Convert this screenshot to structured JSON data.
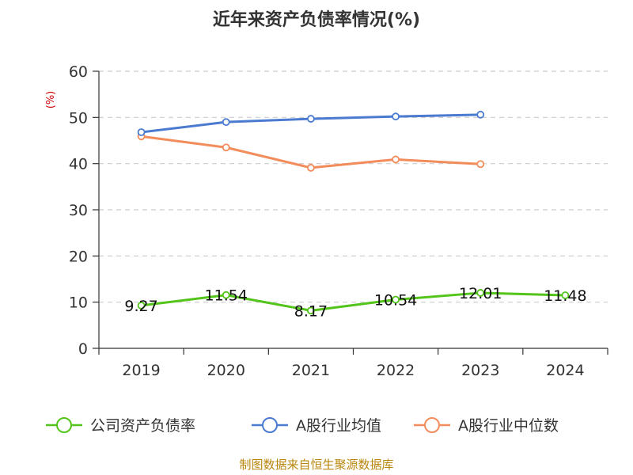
{
  "chart_data": {
    "type": "line",
    "title": "近年来资产负债率情况(%)",
    "ylabel": "(%)",
    "categories": [
      "2019",
      "2020",
      "2021",
      "2022",
      "2023",
      "2024"
    ],
    "ylim": [
      0,
      60
    ],
    "yticks": [
      0,
      10,
      20,
      30,
      40,
      50,
      60
    ],
    "grid": true,
    "legend_position": "bottom",
    "series": [
      {
        "name": "公司资产负债率",
        "color": "#52c41a",
        "values": [
          9.27,
          11.54,
          8.17,
          10.54,
          12.01,
          11.48
        ],
        "labels": [
          "9.27",
          "11.54",
          "8.17",
          "10.54",
          "12.01",
          "11.48"
        ]
      },
      {
        "name": "A股行业均值",
        "color": "#4a7bd0",
        "values": [
          46.8,
          49.0,
          49.7,
          50.2,
          50.6,
          null
        ]
      },
      {
        "name": "A股行业中位数",
        "color": "#f28c5a",
        "values": [
          45.9,
          43.5,
          39.1,
          40.9,
          39.9,
          null
        ]
      }
    ]
  },
  "source_text": "制图数据来自恒生聚源数据库"
}
